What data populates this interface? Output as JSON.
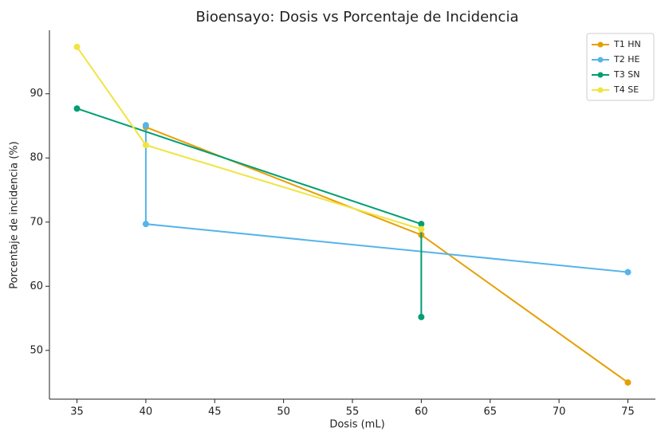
{
  "chart_data": {
    "type": "line",
    "title": "Bioensayo: Dosis vs Porcentaje de Incidencia",
    "x_label": "Dosis (mL)",
    "y_label": "Porcentaje de incidencia (%)",
    "series": [
      {
        "name": "T1 HN",
        "color": "#E69F00",
        "x": [
          40,
          60,
          75
        ],
        "values": [
          84.8,
          68,
          45
        ]
      },
      {
        "name": "T2 HE",
        "color": "#56B4E9",
        "x": [
          40,
          40,
          75
        ],
        "values": [
          85.1,
          69.7,
          62.2
        ]
      },
      {
        "name": "T3 SN",
        "color": "#009E73",
        "x": [
          35,
          60,
          60
        ],
        "values": [
          87.7,
          69.7,
          55.2
        ]
      },
      {
        "name": "T4 SE",
        "color": "#F0E442",
        "x": [
          35,
          40,
          60
        ],
        "values": [
          97.3,
          82,
          68.9
        ]
      }
    ],
    "xlim": [
      33,
      77
    ],
    "xticks": [
      35,
      40,
      45,
      50,
      55,
      60,
      65,
      70,
      75
    ],
    "ylim": [
      42.4,
      99.9
    ],
    "yticks": [
      50,
      60,
      70,
      80,
      90
    ],
    "legend": "upper right"
  }
}
